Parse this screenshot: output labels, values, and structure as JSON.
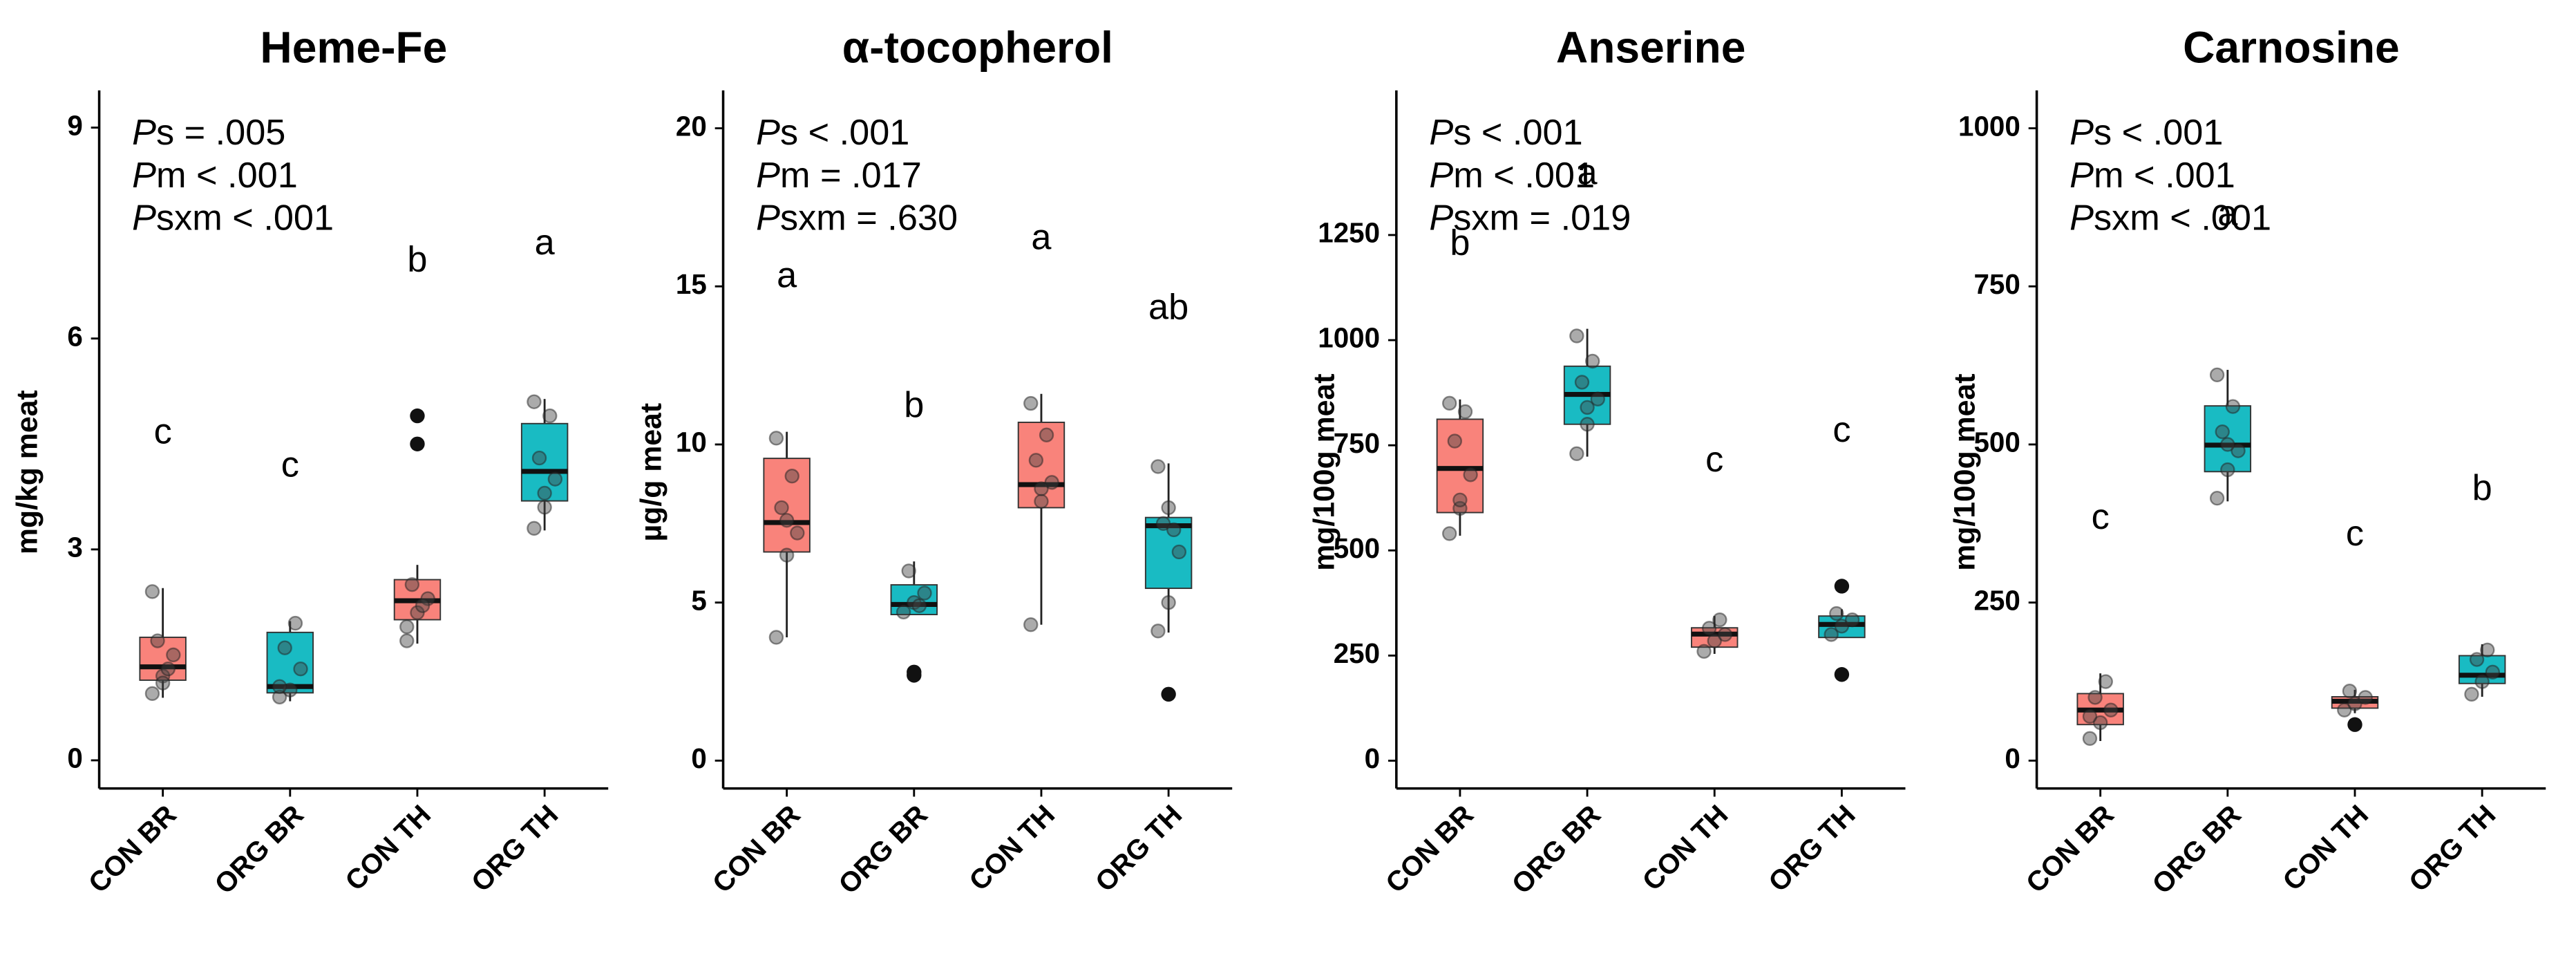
{
  "chart_data": [
    {
      "type": "box",
      "title": "Heme-Fe",
      "y_label": "mg/kg meat",
      "ylim": [
        -0.4,
        9.53
      ],
      "yticks": [
        0,
        3,
        6,
        9
      ],
      "annotations": [
        {
          "stat": "P",
          "text": "s  = .005"
        },
        {
          "stat": "P",
          "text": "m  < .001"
        },
        {
          "stat": "P",
          "text": "sxm < .001"
        }
      ],
      "categories": [
        "CON BR",
        "ORG BR",
        "CON TH",
        "ORG TH"
      ],
      "boxes": [
        {
          "color": "#F8766D",
          "letter": "c",
          "whisker_low": 0.89,
          "q1": 1.14,
          "median": 1.33,
          "q3": 1.75,
          "whisker_high": 2.45,
          "points": [
            0.95,
            1.2,
            1.5,
            1.7,
            1.3,
            2.4,
            1.1
          ],
          "outliers": []
        },
        {
          "color": "#00B4BC",
          "letter": "c",
          "whisker_low": 0.84,
          "q1": 0.96,
          "median": 1.05,
          "q3": 1.82,
          "whisker_high": 1.98,
          "points": [
            0.9,
            1.0,
            1.3,
            1.6,
            1.95,
            1.05
          ],
          "outliers": []
        },
        {
          "color": "#F8766D",
          "letter": "b",
          "whisker_low": 1.66,
          "q1": 2.0,
          "median": 2.27,
          "q3": 2.57,
          "whisker_high": 2.78,
          "points": [
            1.7,
            2.1,
            2.3,
            2.5,
            2.2,
            1.9
          ],
          "outliers": [
            4.9,
            4.5
          ]
        },
        {
          "color": "#00B4BC",
          "letter": "a",
          "whisker_low": 3.27,
          "q1": 3.69,
          "median": 4.11,
          "q3": 4.79,
          "whisker_high": 5.14,
          "points": [
            3.3,
            3.6,
            4.0,
            4.3,
            4.9,
            5.1,
            3.8
          ],
          "outliers": []
        }
      ]
    },
    {
      "type": "box",
      "title": "α-tocopherol",
      "y_label": "µg/g meat",
      "ylim": [
        -0.88,
        21.2
      ],
      "yticks": [
        0,
        5,
        10,
        15,
        20
      ],
      "annotations": [
        {
          "stat": "P",
          "text": "s  < .001"
        },
        {
          "stat": "P",
          "text": "m = .017"
        },
        {
          "stat": "P",
          "text": "sxm = .630"
        }
      ],
      "categories": [
        "CON BR",
        "ORG BR",
        "CON TH",
        "ORG TH"
      ],
      "boxes": [
        {
          "color": "#F8766D",
          "letter": "a",
          "whisker_low": 3.9,
          "q1": 6.6,
          "median": 7.53,
          "q3": 9.56,
          "whisker_high": 10.4,
          "points": [
            3.9,
            6.5,
            7.2,
            8.0,
            9.0,
            10.2,
            7.6
          ],
          "outliers": []
        },
        {
          "color": "#00B4BC",
          "letter": "b",
          "whisker_low": 4.62,
          "q1": 4.62,
          "median": 4.94,
          "q3": 5.56,
          "whisker_high": 6.3,
          "points": [
            4.7,
            5.0,
            5.3,
            6.0,
            4.9
          ],
          "outliers": [
            2.8,
            2.7
          ]
        },
        {
          "color": "#F8766D",
          "letter": "a",
          "whisker_low": 4.3,
          "q1": 8.0,
          "median": 8.73,
          "q3": 10.7,
          "whisker_high": 11.6,
          "points": [
            4.3,
            8.2,
            8.8,
            9.5,
            10.3,
            11.3,
            8.6
          ],
          "outliers": []
        },
        {
          "color": "#00B4BC",
          "letter": "ab",
          "whisker_low": 4.05,
          "q1": 5.45,
          "median": 7.43,
          "q3": 7.69,
          "whisker_high": 9.4,
          "points": [
            4.1,
            5.0,
            6.6,
            7.5,
            7.3,
            9.3,
            8.0
          ],
          "outliers": [
            2.1
          ]
        }
      ]
    },
    {
      "type": "box",
      "title": "Anserine",
      "y_label": "mg/100g meat",
      "ylim": [
        -66,
        1594
      ],
      "yticks": [
        0,
        250,
        500,
        750,
        1000,
        1250
      ],
      "annotations": [
        {
          "stat": "P",
          "text": "s  < .001"
        },
        {
          "stat": "P",
          "text": "m < .001"
        },
        {
          "stat": "P",
          "text": "sxm = .019"
        }
      ],
      "categories": [
        "CON BR",
        "ORG BR",
        "CON TH",
        "ORG TH"
      ],
      "boxes": [
        {
          "color": "#F8766D",
          "letter": "b",
          "whisker_low": 535,
          "q1": 590,
          "median": 695,
          "q3": 812,
          "whisker_high": 859,
          "points": [
            540,
            600,
            680,
            760,
            830,
            850,
            620
          ],
          "outliers": []
        },
        {
          "color": "#00B4BC",
          "letter": "a",
          "whisker_low": 723,
          "q1": 800,
          "median": 871,
          "q3": 938,
          "whisker_high": 1027,
          "points": [
            730,
            800,
            860,
            900,
            950,
            1010,
            840
          ],
          "outliers": []
        },
        {
          "color": "#F8766D",
          "letter": "c",
          "whisker_low": 254,
          "q1": 270,
          "median": 301,
          "q3": 316,
          "whisker_high": 344,
          "points": [
            260,
            285,
            300,
            315,
            335
          ],
          "outliers": []
        },
        {
          "color": "#00B4BC",
          "letter": "c",
          "whisker_low": 293,
          "q1": 293,
          "median": 324,
          "q3": 344,
          "whisker_high": 360,
          "points": [
            300,
            320,
            335,
            350
          ],
          "outliers": [
            415,
            205
          ]
        }
      ]
    },
    {
      "type": "box",
      "title": "Carnosine",
      "y_label": "mg/100g meat",
      "ylim": [
        -44,
        1060
      ],
      "yticks": [
        0,
        250,
        500,
        750,
        1000
      ],
      "annotations": [
        {
          "stat": "P",
          "text": "s  < .001"
        },
        {
          "stat": "P",
          "text": "m < .001"
        },
        {
          "stat": "P",
          "text": "sxm < .001"
        }
      ],
      "categories": [
        "CON BR",
        "ORG BR",
        "CON TH",
        "ORG TH"
      ],
      "boxes": [
        {
          "color": "#F8766D",
          "letter": "c",
          "whisker_low": 31,
          "q1": 57,
          "median": 80,
          "q3": 106,
          "whisker_high": 138,
          "points": [
            35,
            60,
            80,
            100,
            125,
            70
          ],
          "outliers": []
        },
        {
          "color": "#00B4BC",
          "letter": "a",
          "whisker_low": 410,
          "q1": 457,
          "median": 499,
          "q3": 561,
          "whisker_high": 618,
          "points": [
            415,
            460,
            490,
            520,
            560,
            610,
            500
          ],
          "outliers": []
        },
        {
          "color": "#F8766D",
          "letter": "c",
          "whisker_low": 75,
          "q1": 83,
          "median": 94,
          "q3": 101,
          "whisker_high": 112,
          "points": [
            80,
            90,
            100,
            110
          ],
          "outliers": [
            57
          ]
        },
        {
          "color": "#00B4BC",
          "letter": "b",
          "whisker_low": 101,
          "q1": 122,
          "median": 135,
          "q3": 166,
          "whisker_high": 184,
          "points": [
            105,
            125,
            140,
            160,
            175
          ],
          "outliers": []
        }
      ]
    }
  ]
}
